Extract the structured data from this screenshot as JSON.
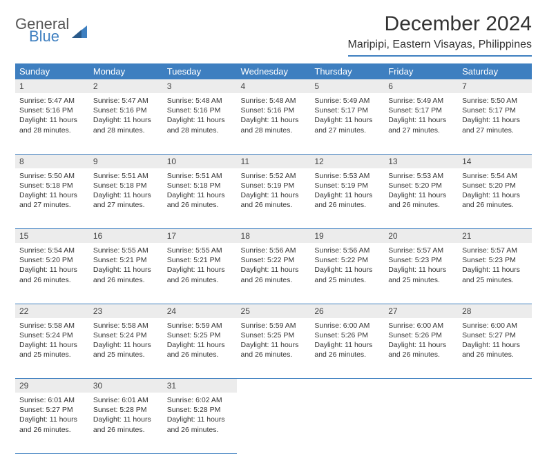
{
  "brand": {
    "word1": "General",
    "word2": "Blue"
  },
  "title": "December 2024",
  "location": "Maripipi, Eastern Visayas, Philippines",
  "colors": {
    "accent": "#3e7fc0",
    "header_text": "#ffffff",
    "daynum_bg": "#ececec",
    "body_text": "#333333",
    "page_bg": "#ffffff"
  },
  "daysOfWeek": [
    "Sunday",
    "Monday",
    "Tuesday",
    "Wednesday",
    "Thursday",
    "Friday",
    "Saturday"
  ],
  "weeks": [
    [
      {
        "n": "1",
        "sr": "5:47 AM",
        "ss": "5:16 PM",
        "dl": "11 hours and 28 minutes."
      },
      {
        "n": "2",
        "sr": "5:47 AM",
        "ss": "5:16 PM",
        "dl": "11 hours and 28 minutes."
      },
      {
        "n": "3",
        "sr": "5:48 AM",
        "ss": "5:16 PM",
        "dl": "11 hours and 28 minutes."
      },
      {
        "n": "4",
        "sr": "5:48 AM",
        "ss": "5:16 PM",
        "dl": "11 hours and 28 minutes."
      },
      {
        "n": "5",
        "sr": "5:49 AM",
        "ss": "5:17 PM",
        "dl": "11 hours and 27 minutes."
      },
      {
        "n": "6",
        "sr": "5:49 AM",
        "ss": "5:17 PM",
        "dl": "11 hours and 27 minutes."
      },
      {
        "n": "7",
        "sr": "5:50 AM",
        "ss": "5:17 PM",
        "dl": "11 hours and 27 minutes."
      }
    ],
    [
      {
        "n": "8",
        "sr": "5:50 AM",
        "ss": "5:18 PM",
        "dl": "11 hours and 27 minutes."
      },
      {
        "n": "9",
        "sr": "5:51 AM",
        "ss": "5:18 PM",
        "dl": "11 hours and 27 minutes."
      },
      {
        "n": "10",
        "sr": "5:51 AM",
        "ss": "5:18 PM",
        "dl": "11 hours and 26 minutes."
      },
      {
        "n": "11",
        "sr": "5:52 AM",
        "ss": "5:19 PM",
        "dl": "11 hours and 26 minutes."
      },
      {
        "n": "12",
        "sr": "5:53 AM",
        "ss": "5:19 PM",
        "dl": "11 hours and 26 minutes."
      },
      {
        "n": "13",
        "sr": "5:53 AM",
        "ss": "5:20 PM",
        "dl": "11 hours and 26 minutes."
      },
      {
        "n": "14",
        "sr": "5:54 AM",
        "ss": "5:20 PM",
        "dl": "11 hours and 26 minutes."
      }
    ],
    [
      {
        "n": "15",
        "sr": "5:54 AM",
        "ss": "5:20 PM",
        "dl": "11 hours and 26 minutes."
      },
      {
        "n": "16",
        "sr": "5:55 AM",
        "ss": "5:21 PM",
        "dl": "11 hours and 26 minutes."
      },
      {
        "n": "17",
        "sr": "5:55 AM",
        "ss": "5:21 PM",
        "dl": "11 hours and 26 minutes."
      },
      {
        "n": "18",
        "sr": "5:56 AM",
        "ss": "5:22 PM",
        "dl": "11 hours and 26 minutes."
      },
      {
        "n": "19",
        "sr": "5:56 AM",
        "ss": "5:22 PM",
        "dl": "11 hours and 25 minutes."
      },
      {
        "n": "20",
        "sr": "5:57 AM",
        "ss": "5:23 PM",
        "dl": "11 hours and 25 minutes."
      },
      {
        "n": "21",
        "sr": "5:57 AM",
        "ss": "5:23 PM",
        "dl": "11 hours and 25 minutes."
      }
    ],
    [
      {
        "n": "22",
        "sr": "5:58 AM",
        "ss": "5:24 PM",
        "dl": "11 hours and 25 minutes."
      },
      {
        "n": "23",
        "sr": "5:58 AM",
        "ss": "5:24 PM",
        "dl": "11 hours and 25 minutes."
      },
      {
        "n": "24",
        "sr": "5:59 AM",
        "ss": "5:25 PM",
        "dl": "11 hours and 26 minutes."
      },
      {
        "n": "25",
        "sr": "5:59 AM",
        "ss": "5:25 PM",
        "dl": "11 hours and 26 minutes."
      },
      {
        "n": "26",
        "sr": "6:00 AM",
        "ss": "5:26 PM",
        "dl": "11 hours and 26 minutes."
      },
      {
        "n": "27",
        "sr": "6:00 AM",
        "ss": "5:26 PM",
        "dl": "11 hours and 26 minutes."
      },
      {
        "n": "28",
        "sr": "6:00 AM",
        "ss": "5:27 PM",
        "dl": "11 hours and 26 minutes."
      }
    ],
    [
      {
        "n": "29",
        "sr": "6:01 AM",
        "ss": "5:27 PM",
        "dl": "11 hours and 26 minutes."
      },
      {
        "n": "30",
        "sr": "6:01 AM",
        "ss": "5:28 PM",
        "dl": "11 hours and 26 minutes."
      },
      {
        "n": "31",
        "sr": "6:02 AM",
        "ss": "5:28 PM",
        "dl": "11 hours and 26 minutes."
      },
      null,
      null,
      null,
      null
    ]
  ],
  "labels": {
    "sunrise": "Sunrise:",
    "sunset": "Sunset:",
    "daylight": "Daylight:"
  }
}
